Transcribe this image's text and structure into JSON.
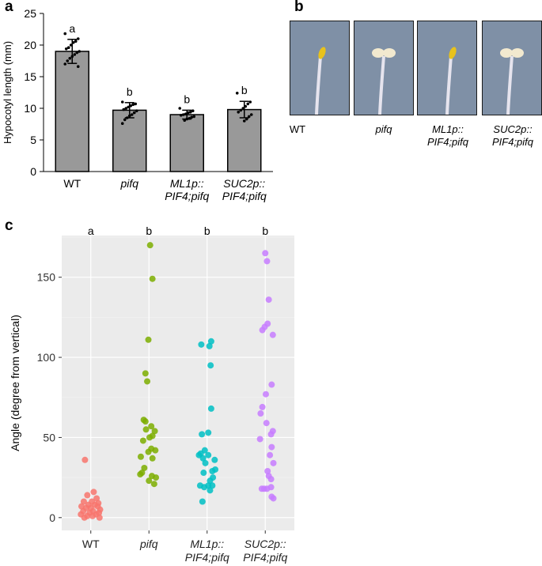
{
  "panels": {
    "a": "a",
    "b": "b",
    "c": "c"
  },
  "chart_data": [
    {
      "panel": "a",
      "type": "bar",
      "ylabel": "Hypocotyl length (mm)",
      "ylim": [
        0,
        25
      ],
      "yticks": [
        0,
        5,
        10,
        15,
        20,
        25
      ],
      "categories": [
        "WT",
        "pifq",
        "ML1p::PIF4;pifq",
        "SUC2p::PIF4;pifq"
      ],
      "category_lines": [
        [
          "WT"
        ],
        [
          "pifq"
        ],
        [
          "ML1p::",
          "PIF4;pifq"
        ],
        [
          "SUC2p::",
          "PIF4;pifq"
        ]
      ],
      "category_italic": [
        false,
        true,
        true,
        true
      ],
      "values": [
        19.0,
        9.7,
        9.0,
        9.8
      ],
      "errors": [
        1.9,
        1.2,
        0.7,
        1.3
      ],
      "significance": [
        "a",
        "b",
        "b",
        "b"
      ],
      "points": [
        [
          21.8,
          21.0,
          20.6,
          20.4,
          20.0,
          19.6,
          19.4,
          19.0,
          18.8,
          18.5,
          18.2,
          17.9,
          17.5,
          17.0,
          16.6
        ],
        [
          11.0,
          10.7,
          10.6,
          10.4,
          10.2,
          10.0,
          9.8,
          9.6,
          9.3,
          9.0,
          8.8,
          8.5,
          8.2,
          7.6
        ],
        [
          10.0,
          9.6,
          9.4,
          9.3,
          9.1,
          9.0,
          8.9,
          8.7,
          8.6,
          8.4,
          8.3,
          8.1
        ],
        [
          12.4,
          11.0,
          10.7,
          10.3,
          10.0,
          9.7,
          9.4,
          9.0,
          8.7,
          8.3,
          8.0
        ]
      ],
      "bar_color": "#999999"
    },
    {
      "panel": "c",
      "type": "scatter",
      "ylabel": "Angle (degree from vertical)",
      "ylim": [
        -8,
        176
      ],
      "yticks": [
        0,
        50,
        100,
        150
      ],
      "categories": [
        "WT",
        "pifq",
        "ML1p::PIF4;pifq",
        "SUC2p::PIF4;pifq"
      ],
      "category_lines": [
        [
          "WT"
        ],
        [
          "pifq"
        ],
        [
          "ML1p::",
          "PIF4;pifq"
        ],
        [
          "SUC2p::",
          "PIF4;pifq"
        ]
      ],
      "category_italic": [
        false,
        true,
        true,
        true
      ],
      "significance": [
        "a",
        "b",
        "b",
        "b"
      ],
      "series": [
        {
          "name": "WT",
          "color": "#F8766D",
          "points": [
            [
              -0.1,
              36
            ],
            [
              0.05,
              16
            ],
            [
              -0.06,
              14
            ],
            [
              0.1,
              12
            ],
            [
              -0.12,
              10
            ],
            [
              0.02,
              10
            ],
            [
              0.13,
              9
            ],
            [
              -0.04,
              8
            ],
            [
              0.07,
              8
            ],
            [
              -0.16,
              7
            ],
            [
              0.12,
              7
            ],
            [
              -0.08,
              6
            ],
            [
              0.0,
              6
            ],
            [
              0.16,
              5
            ],
            [
              -0.13,
              4
            ],
            [
              0.04,
              4
            ],
            [
              -0.02,
              3
            ],
            [
              0.14,
              3
            ],
            [
              -0.17,
              2
            ],
            [
              0.09,
              2
            ],
            [
              -0.06,
              1
            ],
            [
              0.03,
              1
            ],
            [
              -0.11,
              0
            ],
            [
              0.15,
              0
            ]
          ]
        },
        {
          "name": "pifq",
          "color": "#7CAE00",
          "points": [
            [
              0.02,
              170
            ],
            [
              0.06,
              149
            ],
            [
              -0.01,
              111
            ],
            [
              -0.06,
              90
            ],
            [
              -0.03,
              85
            ],
            [
              -0.09,
              61
            ],
            [
              -0.06,
              60
            ],
            [
              0.04,
              57
            ],
            [
              -0.05,
              55
            ],
            [
              0.1,
              54
            ],
            [
              0.06,
              51
            ],
            [
              0.01,
              50
            ],
            [
              -0.1,
              48
            ],
            [
              0.04,
              43
            ],
            [
              0.11,
              42
            ],
            [
              -0.01,
              41
            ],
            [
              -0.14,
              38
            ],
            [
              0.06,
              37
            ],
            [
              -0.08,
              31
            ],
            [
              -0.12,
              28
            ],
            [
              -0.15,
              27
            ],
            [
              0.05,
              26
            ],
            [
              0.12,
              25
            ],
            [
              0.0,
              23
            ],
            [
              0.09,
              21
            ]
          ]
        },
        {
          "name": "ML1p::PIF4;pifq",
          "color": "#00BFC4",
          "points": [
            [
              -0.1,
              108
            ],
            [
              0.07,
              110
            ],
            [
              0.04,
              107
            ],
            [
              0.06,
              95
            ],
            [
              0.07,
              68
            ],
            [
              0.02,
              53
            ],
            [
              -0.09,
              52
            ],
            [
              -0.04,
              42
            ],
            [
              -0.11,
              40
            ],
            [
              0.02,
              39
            ],
            [
              -0.14,
              39
            ],
            [
              -0.07,
              37
            ],
            [
              0.13,
              36
            ],
            [
              -0.03,
              34
            ],
            [
              0.14,
              30
            ],
            [
              0.09,
              29
            ],
            [
              -0.06,
              28
            ],
            [
              0.1,
              25
            ],
            [
              0.05,
              23
            ],
            [
              -0.12,
              20
            ],
            [
              0.02,
              20
            ],
            [
              0.09,
              20
            ],
            [
              -0.05,
              19
            ],
            [
              0.05,
              17
            ],
            [
              -0.08,
              10
            ]
          ]
        },
        {
          "name": "SUC2p::PIF4;pifq",
          "color": "#C77CFF",
          "points": [
            [
              0.0,
              165
            ],
            [
              0.03,
              160
            ],
            [
              0.06,
              136
            ],
            [
              0.04,
              121
            ],
            [
              -0.05,
              117
            ],
            [
              -0.01,
              119
            ],
            [
              0.13,
              114
            ],
            [
              0.11,
              83
            ],
            [
              0.01,
              77
            ],
            [
              -0.05,
              69
            ],
            [
              -0.08,
              65
            ],
            [
              0.02,
              59
            ],
            [
              0.13,
              54
            ],
            [
              0.1,
              52
            ],
            [
              -0.09,
              49
            ],
            [
              0.11,
              44
            ],
            [
              0.08,
              39
            ],
            [
              0.14,
              34
            ],
            [
              0.04,
              29
            ],
            [
              0.06,
              26
            ],
            [
              0.1,
              24
            ],
            [
              0.1,
              19
            ],
            [
              -0.02,
              18
            ],
            [
              -0.06,
              18
            ],
            [
              0.03,
              18
            ],
            [
              0.11,
              13
            ],
            [
              0.14,
              12
            ]
          ]
        }
      ]
    }
  ],
  "photos": {
    "labels": [
      {
        "lines": [
          "WT"
        ],
        "italic": false
      },
      {
        "lines": [
          "pifq"
        ],
        "italic": true
      },
      {
        "lines": [
          "ML1p::",
          "PIF4;pifq"
        ],
        "italic": true
      },
      {
        "lines": [
          "SUC2p::",
          "PIF4;pifq"
        ],
        "italic": true
      }
    ],
    "cotyledon_colors": [
      "#e8c21c",
      "#f2e9cf",
      "#e8c21c",
      "#f2e9cf"
    ],
    "background": "#7f90a6"
  }
}
